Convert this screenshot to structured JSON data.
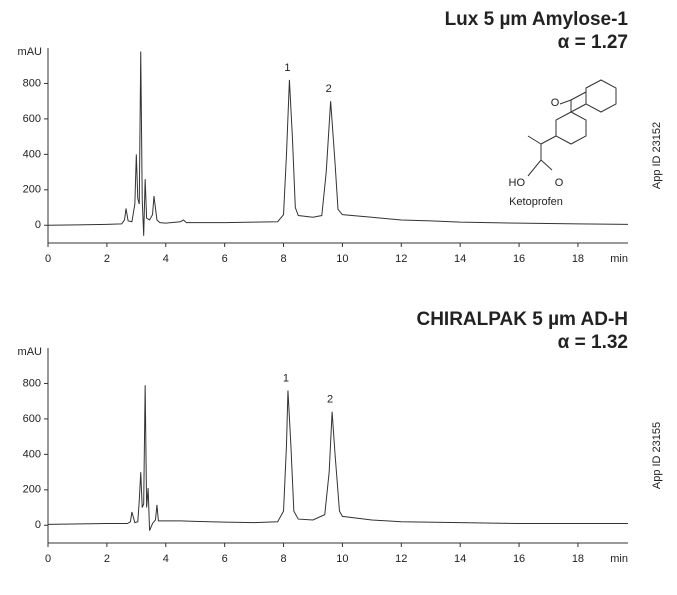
{
  "chart_data": [
    {
      "type": "line",
      "title": "Lux 5 µm Amylose-1",
      "subtitle": "α = 1.27",
      "y_label": "mAU",
      "x_label": "min",
      "side_note": "App ID 23152",
      "annotations": [
        "1",
        "2"
      ],
      "structure": {
        "name": "Ketoprofen",
        "atoms": [
          "O",
          "HO",
          "O"
        ]
      },
      "xlim": [
        0,
        19.7
      ],
      "ylim": [
        -100,
        1000
      ],
      "xticks": [
        0,
        2,
        4,
        6,
        8,
        10,
        12,
        14,
        16,
        18
      ],
      "yticks": [
        0,
        200,
        400,
        600,
        800
      ],
      "series": [
        {
          "color": "#333333",
          "x": [
            0,
            1,
            2,
            2.5,
            2.6,
            2.65,
            2.72,
            2.85,
            2.95,
            3.0,
            3.05,
            3.1,
            3.15,
            3.2,
            3.25,
            3.3,
            3.35,
            3.45,
            3.55,
            3.6,
            3.7,
            3.8,
            4.0,
            4.5,
            4.6,
            4.7,
            5,
            6,
            7,
            7.8,
            8.0,
            8.1,
            8.2,
            8.3,
            8.4,
            8.5,
            9,
            9.3,
            9.45,
            9.6,
            9.75,
            9.85,
            10,
            11,
            12,
            13,
            14,
            16,
            18,
            19.7
          ],
          "values": [
            0,
            2,
            5,
            8,
            30,
            95,
            25,
            20,
            120,
            400,
            150,
            120,
            980,
            150,
            -60,
            260,
            40,
            30,
            60,
            165,
            30,
            15,
            12,
            20,
            30,
            15,
            15,
            15,
            18,
            20,
            60,
            400,
            820,
            500,
            100,
            55,
            45,
            55,
            300,
            700,
            350,
            90,
            60,
            45,
            30,
            25,
            18,
            12,
            8,
            5
          ]
        }
      ]
    },
    {
      "type": "line",
      "title": "CHIRALPAK 5 µm AD-H",
      "subtitle": "α = 1.32",
      "y_label": "mAU",
      "x_label": "min",
      "side_note": "App ID 23155",
      "annotations": [
        "1",
        "2"
      ],
      "xlim": [
        0,
        19.7
      ],
      "ylim": [
        -100,
        1000
      ],
      "xticks": [
        0,
        2,
        4,
        6,
        8,
        10,
        12,
        14,
        16,
        18
      ],
      "yticks": [
        0,
        200,
        400,
        600,
        800
      ],
      "series": [
        {
          "color": "#333333",
          "x": [
            0,
            2,
            2.7,
            2.8,
            2.85,
            2.95,
            3.05,
            3.1,
            3.15,
            3.2,
            3.25,
            3.3,
            3.35,
            3.4,
            3.45,
            3.55,
            3.65,
            3.7,
            3.75,
            4,
            4.5,
            5,
            6,
            7,
            7.8,
            8.0,
            8.1,
            8.15,
            8.25,
            8.35,
            8.5,
            9,
            9.4,
            9.55,
            9.65,
            9.75,
            9.9,
            10,
            11,
            12,
            14,
            16,
            18,
            19.7
          ],
          "values": [
            5,
            10,
            10,
            20,
            75,
            15,
            20,
            140,
            300,
            100,
            120,
            790,
            100,
            210,
            -30,
            10,
            30,
            115,
            25,
            25,
            25,
            22,
            18,
            15,
            20,
            80,
            450,
            760,
            450,
            80,
            35,
            30,
            60,
            300,
            640,
            400,
            80,
            50,
            30,
            20,
            15,
            10,
            10,
            10
          ]
        }
      ]
    }
  ]
}
